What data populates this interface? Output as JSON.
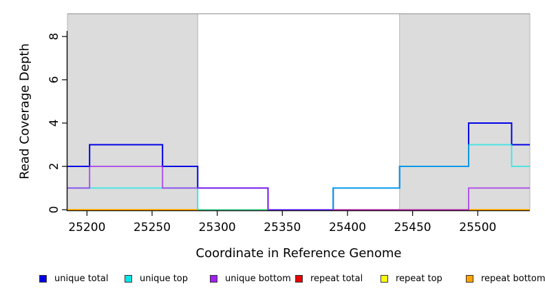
{
  "chart_data": {
    "type": "line",
    "step": true,
    "title": "",
    "xlabel": "Coordinate in Reference Genome",
    "ylabel": "Read Coverage Depth",
    "xlim": [
      25185,
      25540
    ],
    "ylim": [
      0,
      9.05
    ],
    "x_ticks": [
      25200,
      25250,
      25300,
      25350,
      25400,
      25450,
      25500
    ],
    "y_ticks": [
      0,
      2,
      4,
      6,
      8
    ],
    "grid": false,
    "legend_position": "bottom",
    "shade_color": "#dcdcdc",
    "shaded_regions": [
      [
        25185,
        25285
      ],
      [
        25440,
        25540
      ]
    ],
    "series": [
      {
        "name": "unique total",
        "color": "#0000e6",
        "points": [
          [
            25185,
            2
          ],
          [
            25202,
            3
          ],
          [
            25258,
            2
          ],
          [
            25285,
            1
          ],
          [
            25339,
            0
          ],
          [
            25389,
            1
          ],
          [
            25440,
            2
          ],
          [
            25493,
            4
          ],
          [
            25526,
            3
          ]
        ]
      },
      {
        "name": "unique top",
        "color": "#00e6e6",
        "points": [
          [
            25185,
            1
          ],
          [
            25285,
            0
          ],
          [
            25389,
            1
          ],
          [
            25440,
            2
          ],
          [
            25493,
            3
          ],
          [
            25526,
            2
          ]
        ]
      },
      {
        "name": "unique bottom",
        "color": "#a020f0",
        "points": [
          [
            25185,
            1
          ],
          [
            25202,
            2
          ],
          [
            25258,
            1
          ],
          [
            25339,
            0
          ],
          [
            25493,
            1
          ]
        ]
      },
      {
        "name": "repeat total",
        "color": "#e60000",
        "points": [
          [
            25185,
            0
          ]
        ]
      },
      {
        "name": "repeat top",
        "color": "#ffff00",
        "points": [
          [
            25185,
            0
          ]
        ]
      },
      {
        "name": "repeat bottom",
        "color": "#ffa500",
        "points": [
          [
            25185,
            0
          ]
        ]
      }
    ],
    "draw_order": [
      3,
      4,
      5,
      0,
      1,
      2
    ]
  }
}
